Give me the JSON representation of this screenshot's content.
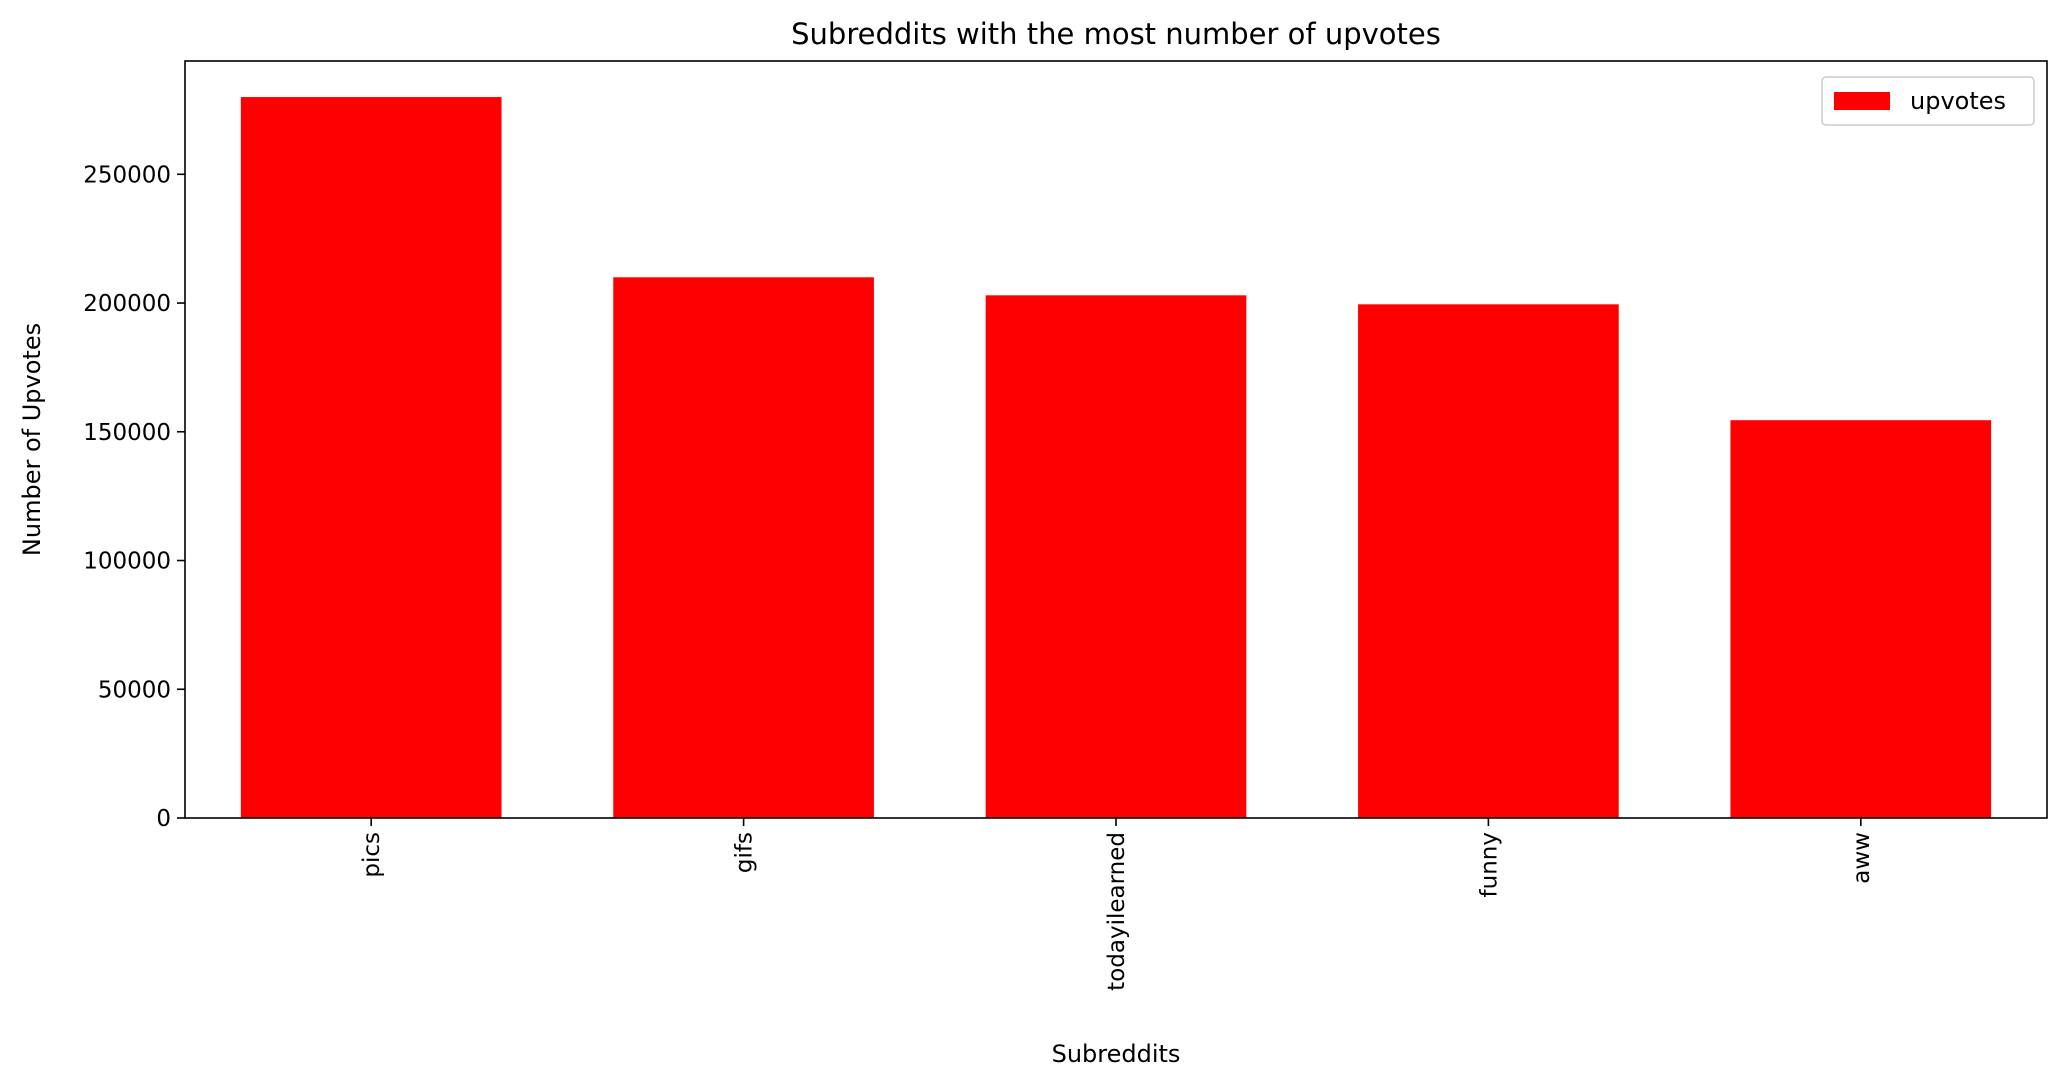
{
  "chart_data": {
    "type": "bar",
    "title": "Subreddits with the most number of upvotes",
    "xlabel": "Subreddits",
    "ylabel": "Number of Upvotes",
    "categories": [
      "pics",
      "gifs",
      "todayilearned",
      "funny",
      "aww"
    ],
    "series": [
      {
        "name": "upvotes",
        "values": [
          280000,
          210000,
          203000,
          199500,
          154500
        ],
        "color": "#ff0000"
      }
    ],
    "ylim": [
      0,
      294000
    ],
    "yticks": [
      0,
      50000,
      100000,
      150000,
      200000,
      250000
    ],
    "grid": false,
    "legend": "top-right"
  }
}
